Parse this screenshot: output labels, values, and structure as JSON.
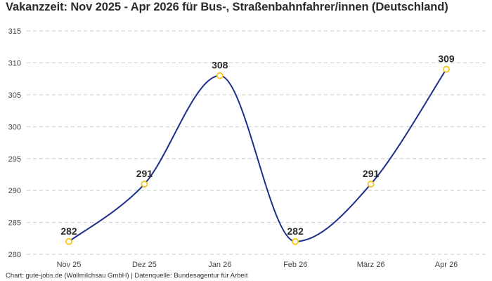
{
  "chart_data": {
    "type": "line",
    "title": "Vakanzzeit: Nov 2025 - Apr 2026 für Bus-, Straßenbahnfahrer/innen (Deutschland)",
    "categories": [
      "Nov 25",
      "Dez 25",
      "Jan 26",
      "Feb 26",
      "März 26",
      "Apr 26"
    ],
    "series": [
      {
        "values": [
          282,
          291,
          308,
          282,
          291,
          309
        ]
      }
    ],
    "data_labels": [
      "282",
      "291",
      "308",
      "282",
      "291",
      "309"
    ],
    "ylim": [
      280,
      316
    ],
    "yticks": [
      "280",
      "285",
      "290",
      "295",
      "300",
      "305",
      "310",
      "315"
    ],
    "grid": true,
    "line_color": "#1c2f8a",
    "marker_color": "#f5c518",
    "source": "Chart: gute-jobs.de (Wollmilchsau GmbH) | Datenquelle: Bundesagentur für Arbeit"
  }
}
